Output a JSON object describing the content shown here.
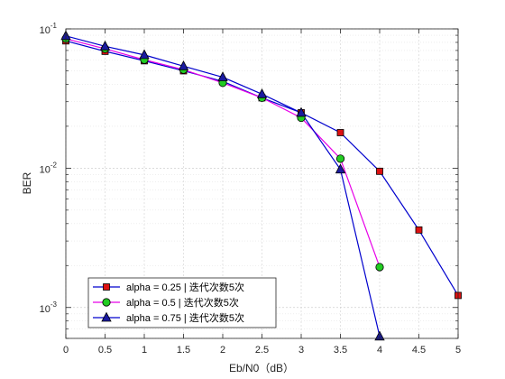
{
  "chart_data": {
    "type": "line",
    "title": "",
    "xlabel": "Eb/N0（dB）",
    "ylabel": "BER",
    "xlim": [
      0,
      5
    ],
    "ylim": [
      0.0006,
      0.1
    ],
    "yscale": "log",
    "grid": true,
    "minor_grid": true,
    "legend_position": "bottom-left",
    "x_ticks": [
      0,
      0.5,
      1,
      1.5,
      2,
      2.5,
      3,
      3.5,
      4,
      4.5,
      5
    ],
    "x_tick_labels": [
      "0",
      "0.5",
      "1",
      "1.5",
      "2",
      "2.5",
      "3",
      "3.5",
      "4",
      "4.5",
      "5"
    ],
    "y_ticks": [
      {
        "value": 0.001,
        "base": "10",
        "exp": "-3"
      },
      {
        "value": 0.01,
        "base": "10",
        "exp": "-2"
      },
      {
        "value": 0.1,
        "base": "10",
        "exp": "-1"
      }
    ],
    "series": [
      {
        "name": "alpha = 0.25 | 迭代次数5次",
        "color": "#0000cd",
        "marker": "square",
        "marker_color": "#dd1111",
        "x": [
          0,
          0.5,
          1,
          1.5,
          2,
          2.5,
          3,
          3.5,
          4,
          4.5,
          5
        ],
        "y": [
          0.082,
          0.069,
          0.059,
          0.05,
          0.042,
          0.032,
          0.025,
          0.018,
          0.0095,
          0.0036,
          0.00122
        ]
      },
      {
        "name": "alpha = 0.5 | 迭代次数5次",
        "color": "#e800e8",
        "marker": "circle",
        "marker_color": "#22cc22",
        "x": [
          0,
          0.5,
          1,
          1.5,
          2,
          2.5,
          3,
          3.5,
          4
        ],
        "y": [
          0.085,
          0.072,
          0.06,
          0.051,
          0.041,
          0.032,
          0.023,
          0.0117,
          0.00195
        ]
      },
      {
        "name": "alpha = 0.75 | 迭代次数5次",
        "color": "#0000cd",
        "marker": "triangle",
        "marker_color": "#1a1aa0",
        "x": [
          0,
          0.5,
          1,
          1.5,
          2,
          2.5,
          3,
          3.5,
          4
        ],
        "y": [
          0.089,
          0.075,
          0.065,
          0.054,
          0.045,
          0.034,
          0.025,
          0.0098,
          0.00062
        ]
      }
    ]
  }
}
